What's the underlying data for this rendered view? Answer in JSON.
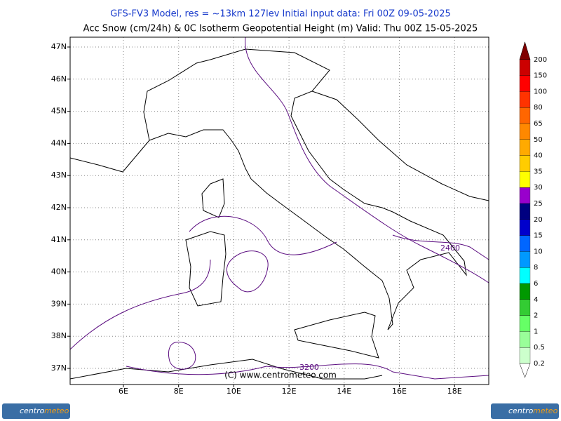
{
  "header": {
    "title": "GFS-FV3 Model, res = ~13km 127lev    Initial input data: Fri 00Z 09-05-2025",
    "subtitle": "Acc Snow (cm/24h) & 0C Isotherm Geopotential Height (m)  Valid: Thu 00Z 15-05-2025"
  },
  "map": {
    "lat_labels": [
      "47N",
      "46N",
      "45N",
      "44N",
      "43N",
      "42N",
      "41N",
      "40N",
      "39N",
      "38N",
      "37N"
    ],
    "lon_labels": [
      "6E",
      "8E",
      "10E",
      "12E",
      "14E",
      "16E",
      "18E"
    ],
    "contour_labels": [
      "2400",
      "3200"
    ],
    "copyright": "(C) www.centrometeo.com"
  },
  "legend": {
    "labels": [
      0.2,
      0.5,
      1,
      2,
      4,
      6,
      8,
      10,
      15,
      20,
      25,
      30,
      35,
      40,
      50,
      65,
      80,
      100,
      150,
      200
    ],
    "colors": [
      "#ffffff",
      "#ccffcc",
      "#99ff99",
      "#66ff66",
      "#33cc33",
      "#009900",
      "#00ffff",
      "#0099ff",
      "#0066ff",
      "#0000cc",
      "#000080",
      "#9900cc",
      "#ffff00",
      "#ffcc00",
      "#ffaa00",
      "#ff8800",
      "#ff6600",
      "#ff3300",
      "#ff0000",
      "#cc0000",
      "#800000"
    ]
  },
  "logo": {
    "part1": "centro",
    "part2": "meteo"
  }
}
